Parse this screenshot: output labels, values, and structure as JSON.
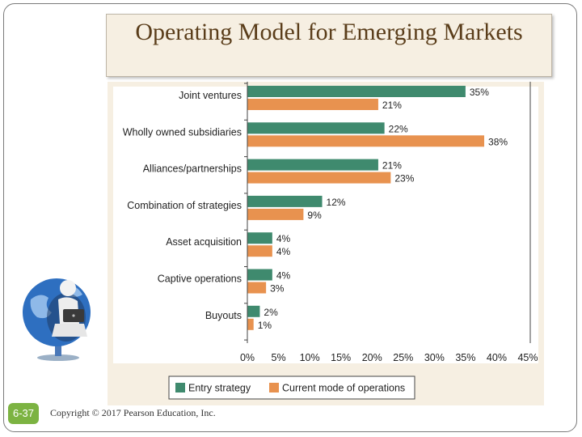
{
  "slide": {
    "title": "Operating Model for Emerging Markets",
    "page_number": "6-37",
    "copyright": "Copyright © 2017 Pearson Education, Inc."
  },
  "colors": {
    "entry": "#3f8a6e",
    "current": "#e8924f",
    "panel_bg": "#f6efe2"
  },
  "chart_data": {
    "type": "bar",
    "orientation": "horizontal",
    "categories": [
      "Joint ventures",
      "Wholly owned subsidiaries",
      "Alliances/partnerships",
      "Combination of strategies",
      "Asset acquisition",
      "Captive operations",
      "Buyouts"
    ],
    "series": [
      {
        "name": "Entry strategy",
        "values": [
          35,
          22,
          21,
          12,
          4,
          4,
          2
        ],
        "color": "#3f8a6e"
      },
      {
        "name": "Current mode of operations",
        "values": [
          21,
          38,
          23,
          9,
          4,
          3,
          1
        ],
        "color": "#e8924f"
      }
    ],
    "value_suffix": "%",
    "xlim": [
      0,
      45
    ],
    "xticks": [
      "0%",
      "5%",
      "10%",
      "15%",
      "20%",
      "25%",
      "30%",
      "35%",
      "40%",
      "45%"
    ],
    "legend_position": "bottom",
    "grid": false
  },
  "decor": {
    "illustration_icon": "person-with-laptop-on-globe-icon"
  }
}
